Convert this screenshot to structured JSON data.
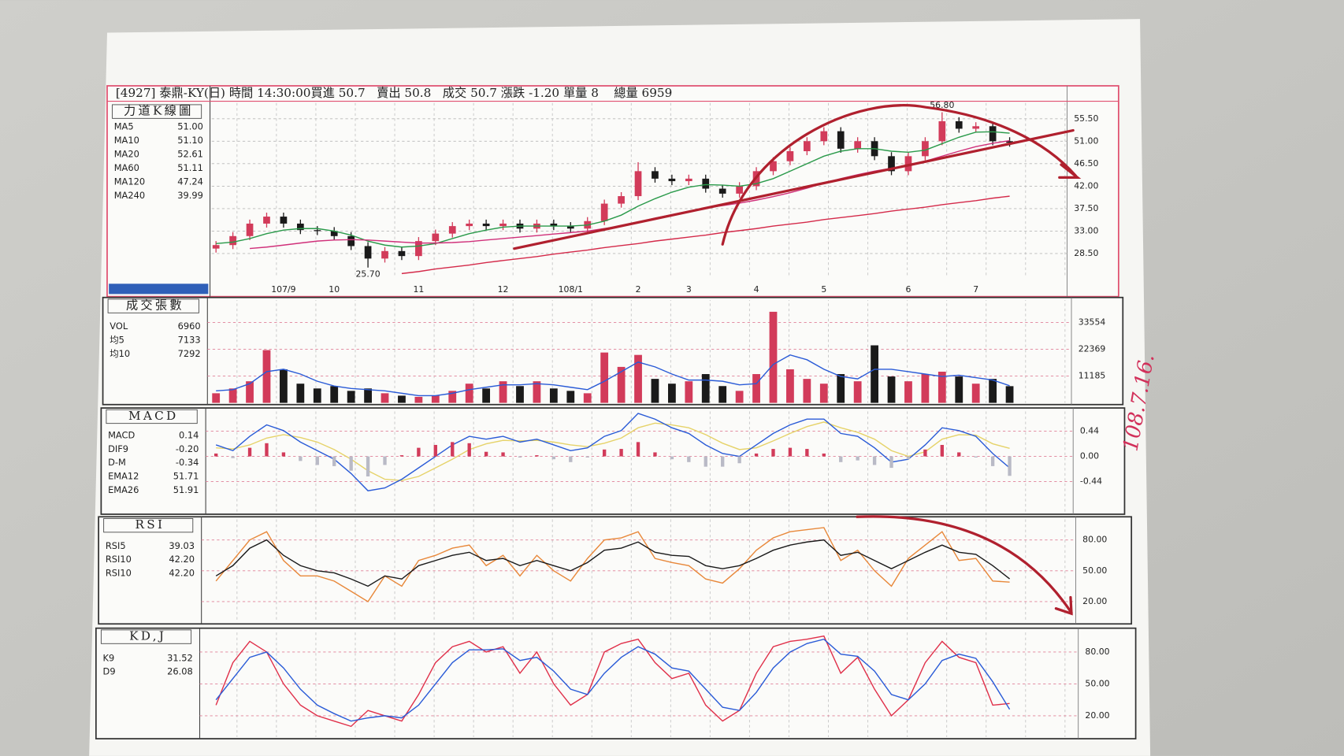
{
  "chart_data": [
    {
      "type": "candlestick",
      "title": "力道K線圖",
      "header": "[4927] 泰鼎-KY(日) 時間 14:30:00買進 50.7   賣出 50.8   成交 50.7 漲跌 -1.20 單量 8    總量 6959",
      "categories": [
        null,
        null,
        null,
        null,
        "107/9",
        null,
        null,
        "10",
        null,
        null,
        null,
        null,
        "11",
        null,
        null,
        null,
        null,
        "12",
        null,
        null,
        null,
        "108/1",
        null,
        null,
        null,
        "2",
        null,
        null,
        "3",
        null,
        null,
        null,
        "4",
        null,
        null,
        null,
        "5",
        null,
        null,
        null,
        null,
        "6",
        null,
        null,
        null,
        "7",
        null,
        null
      ],
      "open": [
        29.5,
        30.2,
        32.0,
        34.5,
        35.9,
        34.5,
        33.2,
        33.0,
        32.0,
        30.0,
        27.5,
        29.0,
        28.0,
        31.0,
        32.5,
        34.0,
        34.5,
        34.0,
        34.5,
        33.5,
        34.5,
        34.0,
        33.5,
        35.0,
        38.5,
        40.0,
        45.0,
        43.5,
        43.0,
        43.5,
        41.5,
        40.5,
        42.0,
        45.0,
        47.0,
        49.0,
        51.0,
        53.0,
        49.5,
        51.0,
        48.0,
        45.0,
        48.0,
        51.0,
        55.0,
        53.5,
        54.0,
        51.0
      ],
      "high": [
        31.0,
        32.8,
        35.3,
        36.7,
        36.7,
        35.3,
        34.0,
        33.8,
        32.8,
        30.8,
        29.8,
        29.8,
        31.8,
        33.3,
        34.8,
        35.3,
        35.3,
        35.3,
        35.3,
        35.3,
        35.3,
        34.8,
        35.8,
        39.3,
        40.8,
        46.8,
        45.8,
        44.3,
        44.3,
        44.3,
        42.3,
        42.8,
        45.8,
        47.8,
        49.8,
        51.8,
        53.8,
        53.8,
        51.8,
        51.8,
        48.8,
        48.8,
        51.8,
        56.8,
        55.8,
        54.8,
        54.8,
        51.8
      ],
      "low": [
        28.7,
        29.4,
        31.2,
        33.7,
        33.7,
        32.4,
        32.2,
        31.2,
        29.2,
        25.7,
        26.7,
        27.2,
        27.2,
        30.2,
        31.7,
        33.2,
        33.2,
        33.2,
        32.7,
        32.7,
        33.2,
        32.7,
        32.7,
        34.2,
        37.7,
        39.2,
        42.7,
        42.2,
        42.2,
        40.7,
        39.7,
        39.7,
        41.2,
        44.2,
        46.2,
        48.2,
        50.2,
        48.7,
        48.7,
        47.2,
        44.2,
        44.2,
        47.2,
        50.2,
        52.7,
        52.7,
        50.2,
        49.9
      ],
      "close": [
        30.2,
        32.0,
        34.5,
        35.9,
        34.5,
        33.2,
        33.0,
        32.0,
        30.0,
        27.5,
        29.0,
        28.0,
        31.0,
        32.5,
        34.0,
        34.5,
        34.0,
        34.5,
        33.5,
        34.5,
        34.0,
        33.5,
        35.0,
        38.5,
        40.0,
        45.0,
        43.5,
        43.0,
        43.5,
        41.5,
        40.5,
        42.0,
        45.0,
        47.0,
        49.0,
        51.0,
        53.0,
        49.5,
        51.0,
        48.0,
        45.0,
        48.0,
        51.0,
        55.0,
        53.5,
        54.0,
        51.0,
        50.7
      ],
      "high_labels": [
        null,
        null,
        null,
        null,
        null,
        null,
        null,
        null,
        null,
        null,
        null,
        null,
        null,
        null,
        null,
        null,
        null,
        null,
        null,
        null,
        null,
        null,
        null,
        null,
        null,
        null,
        null,
        null,
        null,
        null,
        null,
        null,
        null,
        null,
        null,
        null,
        null,
        null,
        null,
        null,
        null,
        null,
        null,
        "56.80",
        null,
        null,
        null,
        null
      ],
      "low_labels": [
        null,
        null,
        null,
        null,
        null,
        null,
        null,
        null,
        null,
        "25.70",
        null,
        null,
        null,
        null,
        null,
        null,
        null,
        null,
        null,
        null,
        null,
        null,
        null,
        null,
        null,
        null,
        null,
        null,
        null,
        null,
        null,
        null,
        null,
        null,
        null,
        null,
        null,
        null,
        null,
        null,
        null,
        null,
        null,
        null,
        null,
        null,
        null,
        null
      ],
      "up_color": "#d23b5a",
      "down_color": "#1a1a1a",
      "series": [
        {
          "name": "MA5",
          "color": "#2a5bd7",
          "label": "51.00"
        },
        {
          "name": "MA10",
          "color": "#e6d36a",
          "label": "51.10"
        },
        {
          "name": "MA20",
          "color": "#2a9a4a",
          "label": "52.61",
          "values": [
            30.5,
            30.8,
            31.5,
            32.5,
            33.2,
            33.5,
            33.5,
            33.0,
            32.2,
            31.0,
            30.2,
            29.8,
            30.0,
            30.5,
            31.5,
            32.5,
            33.2,
            33.8,
            34.0,
            34.0,
            34.0,
            34.0,
            34.2,
            35.0,
            36.2,
            38.0,
            39.5,
            40.8,
            41.8,
            42.3,
            42.2,
            42.0,
            42.5,
            43.5,
            45.0,
            46.5,
            48.0,
            49.0,
            49.5,
            49.5,
            49.0,
            48.8,
            49.2,
            50.5,
            51.8,
            52.8,
            52.9,
            52.61
          ]
        },
        {
          "name": "MA60",
          "color": "#d0307a",
          "label": "51.11",
          "values": [
            null,
            null,
            29.5,
            29.8,
            30.2,
            30.6,
            31.0,
            31.2,
            31.3,
            31.2,
            31.0,
            30.8,
            30.6,
            30.6,
            30.7,
            30.9,
            31.2,
            31.5,
            31.8,
            32.1,
            32.4,
            32.7,
            33.0,
            33.5,
            34.0,
            34.8,
            35.6,
            36.3,
            37.0,
            37.6,
            38.1,
            38.6,
            39.2,
            39.9,
            40.7,
            41.6,
            42.6,
            43.5,
            44.3,
            45.0,
            45.6,
            46.2,
            47.0,
            48.0,
            49.0,
            49.9,
            50.6,
            51.11
          ]
        },
        {
          "name": "MA120",
          "color": "#e9c6d4",
          "label": "47.24"
        },
        {
          "name": "MA240",
          "color": "#d42a4a",
          "label": "39.99",
          "values": [
            null,
            null,
            null,
            null,
            null,
            null,
            null,
            null,
            null,
            null,
            null,
            24.5,
            24.9,
            25.4,
            25.8,
            26.2,
            26.7,
            27.1,
            27.5,
            27.9,
            28.4,
            28.8,
            29.2,
            29.7,
            30.1,
            30.5,
            31.0,
            31.4,
            31.8,
            32.2,
            32.7,
            33.1,
            33.5,
            34.0,
            34.4,
            34.8,
            35.3,
            35.7,
            36.1,
            36.5,
            37.0,
            37.4,
            37.8,
            38.3,
            38.7,
            39.1,
            39.6,
            39.99
          ]
        }
      ],
      "ylim": [
        24,
        59
      ],
      "yticks": [
        {
          "value": 28.5,
          "label": "28.50"
        },
        {
          "value": 33,
          "label": "33.00"
        },
        {
          "value": 37.5,
          "label": "37.50"
        },
        {
          "value": 42,
          "label": "42.00"
        },
        {
          "value": 46.5,
          "label": "46.50"
        },
        {
          "value": 51,
          "label": "51.00"
        },
        {
          "value": 55.5,
          "label": "55.50"
        }
      ],
      "grid": true,
      "grid_color": "#b8b8b8",
      "frame_color": "#e05070"
    },
    {
      "type": "bar",
      "title": "成交張數",
      "series": [
        {
          "name": "VOL",
          "color": "#2a9a4a",
          "label": "6960",
          "up_color": "#d23b5a",
          "down_color": "#1a1a1a",
          "values": [
            4000,
            6000,
            9000,
            22000,
            14000,
            8000,
            6000,
            7000,
            5000,
            6000,
            4000,
            3000,
            2500,
            3000,
            5000,
            8000,
            6000,
            9000,
            7000,
            9000,
            6000,
            5000,
            4000,
            21000,
            15000,
            20000,
            10000,
            8000,
            9000,
            12000,
            7000,
            5000,
            12000,
            38000,
            14000,
            10000,
            8000,
            12000,
            9000,
            24000,
            11000,
            9000,
            12000,
            13000,
            11000,
            8000,
            10000,
            6960
          ]
        },
        {
          "name": "均5",
          "color": "#2a5bd7",
          "type": "line",
          "label": "7133",
          "values": [
            5000,
            5500,
            8000,
            13000,
            14000,
            12000,
            9000,
            7000,
            6000,
            5500,
            5000,
            4000,
            3000,
            3000,
            4000,
            5500,
            6500,
            7500,
            7500,
            8000,
            7500,
            6500,
            5500,
            9000,
            13000,
            17000,
            15000,
            12000,
            9500,
            9500,
            9000,
            7500,
            8000,
            16000,
            20000,
            18000,
            14000,
            11000,
            10000,
            14000,
            14000,
            13000,
            12000,
            11000,
            11500,
            10500,
            9500,
            7133
          ]
        },
        {
          "name": "均10",
          "color": "#e6d36a",
          "label": "7292"
        }
      ],
      "ylim": [
        0,
        42900
      ],
      "yticks": [
        11185,
        22369,
        33554
      ],
      "grid": true,
      "grid_color": "#e08098",
      "frame_color": "#333333"
    },
    {
      "type": "line",
      "title": "MACD",
      "series": [
        {
          "name": "MACD",
          "color": "#e6d36a",
          "label": "0.14",
          "values": [
            0.15,
            0.13,
            0.2,
            0.32,
            0.38,
            0.33,
            0.25,
            0.12,
            -0.05,
            -0.25,
            -0.4,
            -0.42,
            -0.35,
            -0.2,
            -0.05,
            0.12,
            0.22,
            0.28,
            0.27,
            0.28,
            0.25,
            0.2,
            0.17,
            0.23,
            0.32,
            0.5,
            0.58,
            0.55,
            0.5,
            0.38,
            0.23,
            0.12,
            0.15,
            0.27,
            0.4,
            0.52,
            0.6,
            0.5,
            0.42,
            0.3,
            0.1,
            0.0,
            0.08,
            0.3,
            0.38,
            0.37,
            0.22,
            0.14
          ]
        },
        {
          "name": "DIF9",
          "color": "#2a5bd7",
          "label": "-0.20",
          "values": [
            0.2,
            0.1,
            0.35,
            0.55,
            0.45,
            0.25,
            0.1,
            -0.05,
            -0.3,
            -0.6,
            -0.55,
            -0.4,
            -0.2,
            0.0,
            0.2,
            0.35,
            0.3,
            0.35,
            0.25,
            0.3,
            0.2,
            0.1,
            0.15,
            0.35,
            0.45,
            0.75,
            0.65,
            0.5,
            0.4,
            0.2,
            0.05,
            0.0,
            0.2,
            0.4,
            0.55,
            0.65,
            0.65,
            0.4,
            0.35,
            0.15,
            -0.1,
            -0.05,
            0.2,
            0.5,
            0.45,
            0.35,
            0.05,
            -0.2
          ]
        },
        {
          "name": "D-M",
          "color": "#1a1a1a",
          "type": "bar",
          "label": "-0.34",
          "up_color": "#d23b5a",
          "down_color": "#b9bac6",
          "values": [
            0.05,
            -0.03,
            0.15,
            0.23,
            0.07,
            -0.08,
            -0.15,
            -0.17,
            -0.25,
            -0.35,
            -0.15,
            0.02,
            0.15,
            0.2,
            0.25,
            0.23,
            0.08,
            0.07,
            -0.02,
            0.02,
            -0.05,
            -0.1,
            -0.02,
            0.12,
            0.13,
            0.25,
            0.07,
            -0.05,
            -0.1,
            -0.18,
            -0.18,
            -0.12,
            0.05,
            0.13,
            0.15,
            0.13,
            0.05,
            -0.1,
            -0.07,
            -0.15,
            -0.2,
            -0.05,
            0.12,
            0.2,
            0.07,
            -0.02,
            -0.17,
            -0.34
          ]
        },
        {
          "name": "EMA12",
          "color": "#2a9a4a",
          "label": "51.71"
        },
        {
          "name": "EMA26",
          "color": "#d0307a",
          "label": "51.91"
        }
      ],
      "ylim": [
        -0.98,
        0.8
      ],
      "yticks": [
        0.44,
        {
          "value": 0,
          "label": "0.00"
        },
        -0.44
      ],
      "grid": true,
      "grid_color": "#e08098",
      "frame_color": "#333333"
    },
    {
      "type": "line",
      "title": "RSI",
      "series": [
        {
          "name": "RSI5",
          "color": "#e8883a",
          "label": "39.03",
          "values": [
            40,
            60,
            80,
            88,
            60,
            45,
            45,
            40,
            30,
            20,
            45,
            35,
            60,
            65,
            72,
            75,
            55,
            65,
            45,
            65,
            50,
            40,
            62,
            80,
            82,
            88,
            62,
            58,
            55,
            42,
            38,
            52,
            70,
            82,
            88,
            90,
            92,
            60,
            70,
            50,
            35,
            62,
            75,
            88,
            60,
            62,
            40,
            39.03
          ]
        },
        {
          "name": "RSI10",
          "color": "#2a9a4a",
          "label": "42.20"
        },
        {
          "name": "RSI10",
          "color": "#1a1a1a",
          "label": "42.20",
          "values": [
            45,
            55,
            72,
            80,
            65,
            55,
            50,
            48,
            42,
            35,
            45,
            42,
            55,
            60,
            65,
            68,
            60,
            62,
            55,
            60,
            55,
            50,
            58,
            70,
            72,
            78,
            68,
            65,
            64,
            55,
            52,
            55,
            62,
            70,
            75,
            78,
            80,
            65,
            68,
            60,
            52,
            60,
            68,
            75,
            68,
            66,
            55,
            42.2
          ]
        }
      ],
      "ylim": [
        0,
        100
      ],
      "yticks": [
        {
          "value": 80,
          "label": "80.00"
        },
        {
          "value": 50,
          "label": "50.00"
        },
        {
          "value": 20,
          "label": "20.00"
        }
      ],
      "grid": true,
      "grid_color": "#e08098",
      "frame_color": "#333333"
    },
    {
      "type": "line",
      "title": "KD,J",
      "series": [
        {
          "name": "K9",
          "color": "#e0304a",
          "label": "31.52",
          "values": [
            30,
            70,
            90,
            80,
            50,
            30,
            20,
            15,
            10,
            25,
            20,
            15,
            40,
            70,
            85,
            90,
            80,
            85,
            60,
            80,
            50,
            30,
            40,
            80,
            88,
            92,
            70,
            55,
            60,
            30,
            15,
            25,
            60,
            85,
            90,
            92,
            95,
            60,
            75,
            45,
            20,
            35,
            70,
            90,
            75,
            70,
            30,
            31.52
          ]
        },
        {
          "name": "D9",
          "color": "#2a5bd7",
          "label": "26.08",
          "values": [
            35,
            55,
            75,
            80,
            65,
            45,
            30,
            22,
            15,
            18,
            20,
            18,
            30,
            50,
            70,
            82,
            82,
            83,
            72,
            75,
            62,
            45,
            40,
            60,
            75,
            85,
            78,
            65,
            62,
            45,
            28,
            25,
            42,
            65,
            80,
            88,
            92,
            78,
            76,
            62,
            40,
            35,
            50,
            72,
            78,
            74,
            52,
            26.08
          ]
        }
      ],
      "ylim": [
        0,
        100
      ],
      "yticks": [
        {
          "value": 80,
          "label": "80.00"
        },
        {
          "value": 50,
          "label": "50.00"
        },
        {
          "value": 20,
          "label": "20.00"
        }
      ],
      "grid": true,
      "grid_color": "#e08098",
      "frame_color": "#333333"
    }
  ],
  "handwritten_note": "108.7.16."
}
